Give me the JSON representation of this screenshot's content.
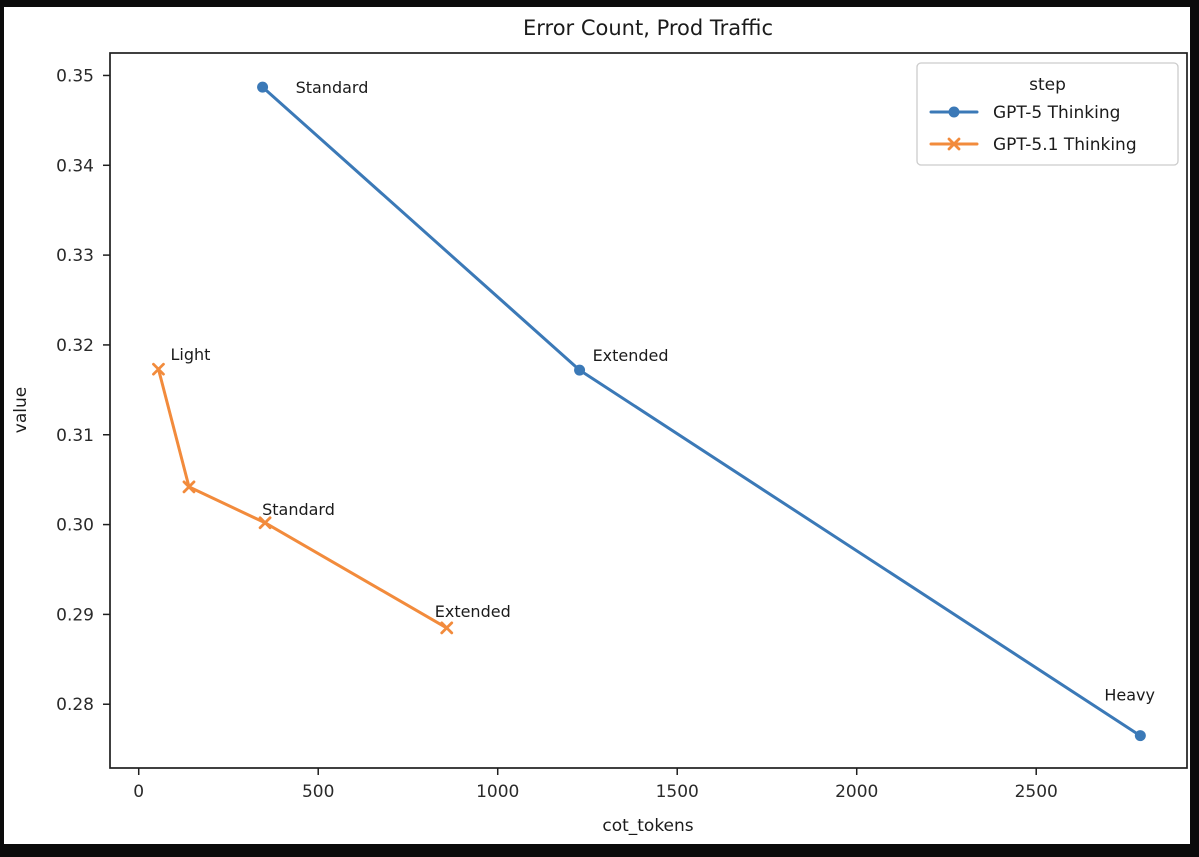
{
  "window": {
    "frame_color": "#0b0b0b",
    "canvas_color": "#ffffff"
  },
  "chart_data": {
    "type": "line",
    "title": "Error Count, Prod Traffic",
    "xlabel": "cot_tokens",
    "ylabel": "value",
    "xlim": [
      -80,
      2920
    ],
    "ylim": [
      0.2729,
      0.3525
    ],
    "x_ticks": [
      0,
      500,
      1000,
      1500,
      2000,
      2500
    ],
    "y_ticks": [
      0.28,
      0.29,
      0.3,
      0.31,
      0.32,
      0.33,
      0.34,
      0.35
    ],
    "grid": false,
    "legend": {
      "title": "step",
      "position": "upper right"
    },
    "series": [
      {
        "name": "GPT-5 Thinking",
        "color": "#3b79b7",
        "marker": "circle",
        "points": [
          {
            "x": 345,
            "y": 0.3487,
            "label": "Standard",
            "label_dx": 33,
            "label_dy": 6
          },
          {
            "x": 1228,
            "y": 0.3172,
            "label": "Extended",
            "label_dx": 13,
            "label_dy": -9
          },
          {
            "x": 2790,
            "y": 0.2765,
            "label": "Heavy",
            "label_dx": -36,
            "label_dy": -35
          }
        ]
      },
      {
        "name": "GPT-5.1 Thinking",
        "color": "#f28b3c",
        "marker": "x",
        "points": [
          {
            "x": 55,
            "y": 0.3173,
            "label": "Light",
            "label_dx": 12,
            "label_dy": -9
          },
          {
            "x": 140,
            "y": 0.3042,
            "label": "",
            "label_dx": 0,
            "label_dy": 0
          },
          {
            "x": 352,
            "y": 0.3002,
            "label": "Standard",
            "label_dx": -3,
            "label_dy": -8
          },
          {
            "x": 858,
            "y": 0.2885,
            "label": "Extended",
            "label_dx": -12,
            "label_dy": -11
          }
        ]
      }
    ]
  }
}
